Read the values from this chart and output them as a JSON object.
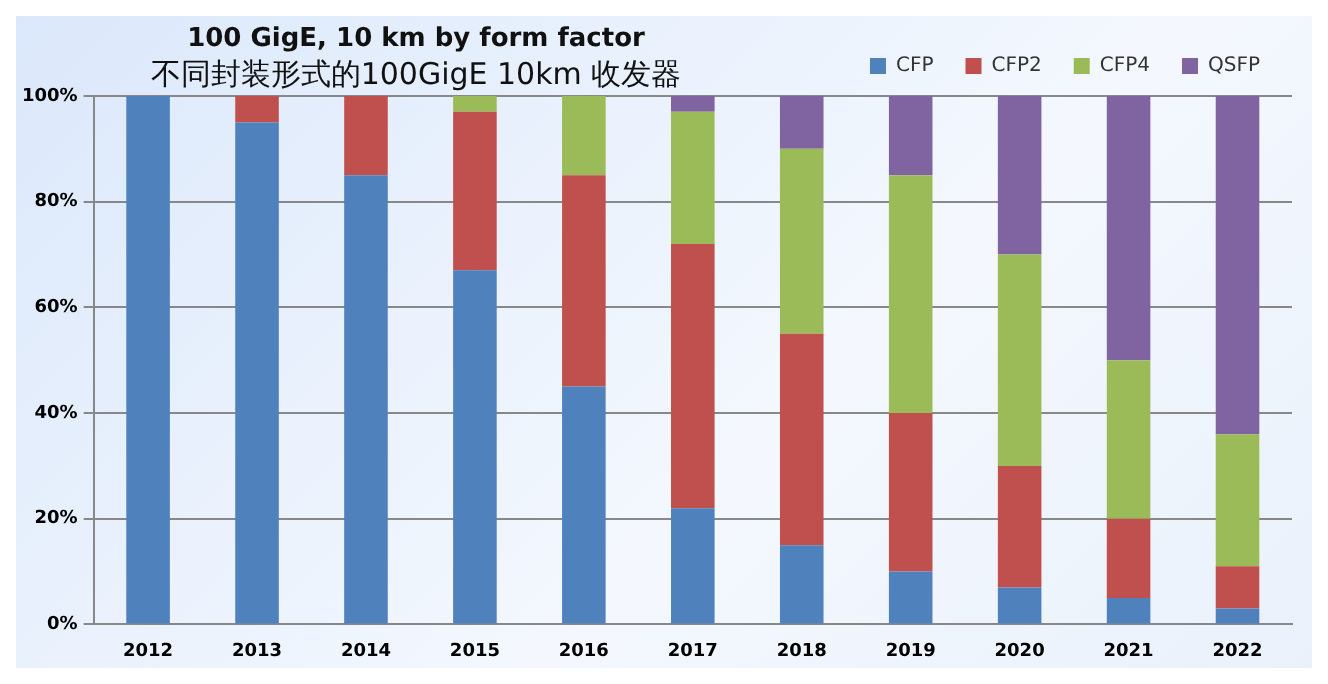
{
  "chart_data": {
    "type": "bar",
    "title": "100 GigE, 10 km by form factor",
    "subtitle": "不同封装形式的100GigE 10km 收发器",
    "categories": [
      "2012",
      "2013",
      "2014",
      "2015",
      "2016",
      "2017",
      "2018",
      "2019",
      "2020",
      "2021",
      "2022"
    ],
    "stacked": true,
    "series": [
      {
        "name": "CFP",
        "color": "#4f81bd",
        "values": [
          100,
          95,
          85,
          67,
          45,
          22,
          15,
          10,
          7,
          5,
          3
        ]
      },
      {
        "name": "CFP2",
        "color": "#c0504d",
        "values": [
          0,
          5,
          15,
          30,
          40,
          50,
          40,
          30,
          23,
          15,
          8
        ]
      },
      {
        "name": "CFP4",
        "color": "#9bbb59",
        "values": [
          0,
          0,
          0,
          3,
          15,
          25,
          35,
          45,
          40,
          30,
          25
        ]
      },
      {
        "name": "QSFP",
        "color": "#8064a2",
        "values": [
          0,
          0,
          0,
          0,
          0,
          3,
          10,
          15,
          30,
          50,
          64
        ]
      }
    ],
    "ylim": [
      0,
      100
    ],
    "yticks": [
      {
        "value": 0,
        "label": "0%"
      },
      {
        "value": 20,
        "label": "20%"
      },
      {
        "value": 40,
        "label": "40%"
      },
      {
        "value": 60,
        "label": "60%"
      },
      {
        "value": 80,
        "label": "80%"
      },
      {
        "value": 100,
        "label": "100%"
      }
    ],
    "grid": "y",
    "legend": "top right"
  }
}
